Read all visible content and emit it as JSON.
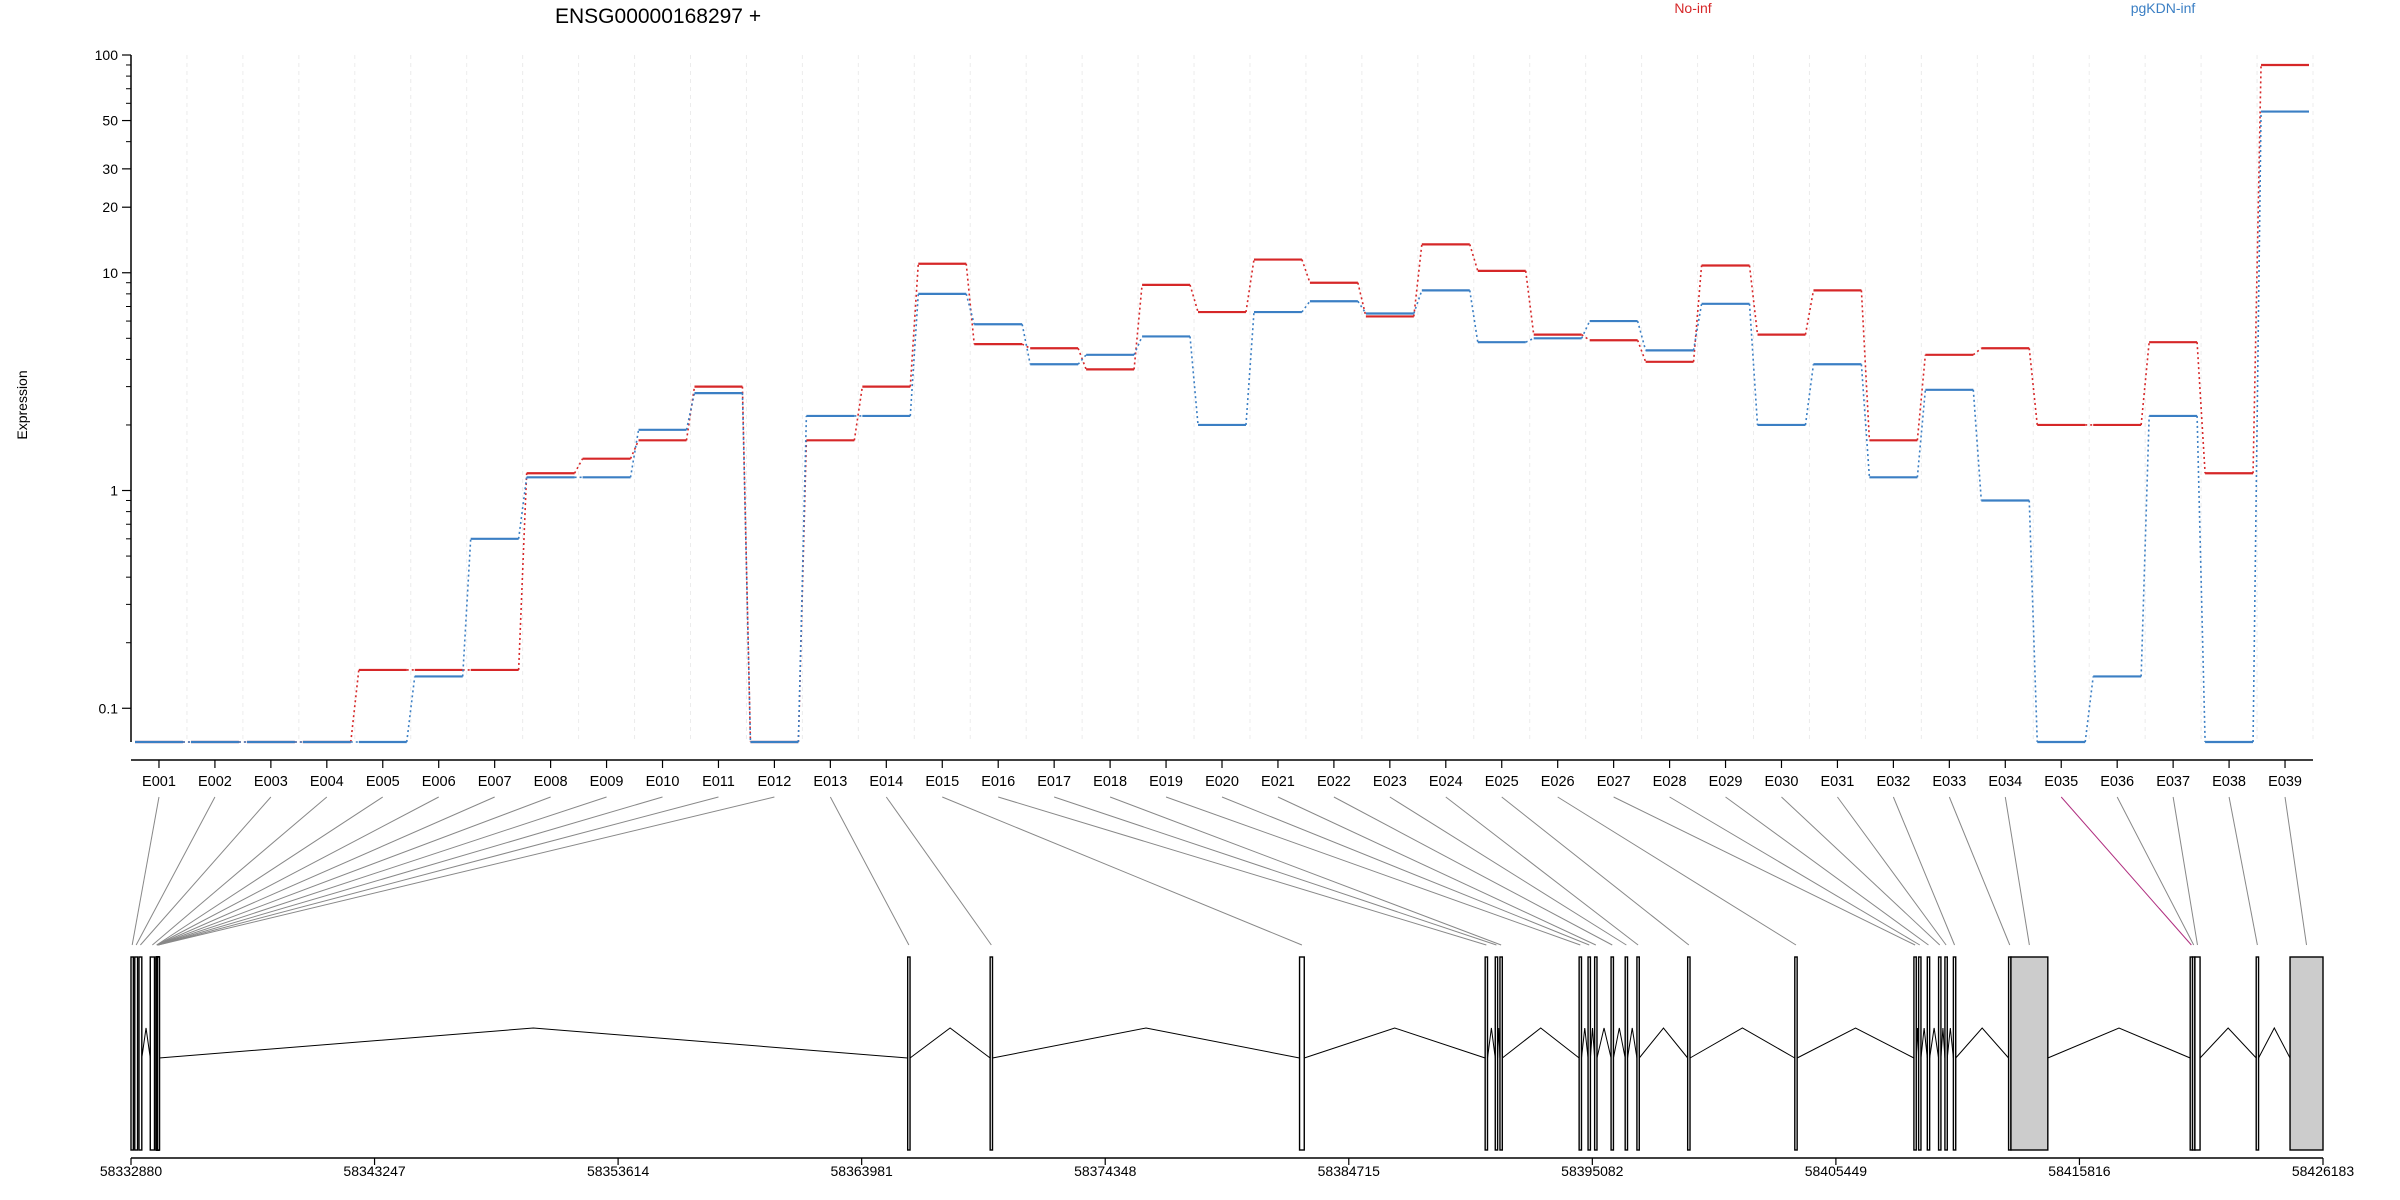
{
  "chart_data": {
    "type": "line",
    "title": "ENSG00000168297 +",
    "ylabel": "Expression",
    "xlabel": "",
    "yscale": "log",
    "ylim": [
      0.07,
      100
    ],
    "yticks": [
      {
        "value": 0.1,
        "label": "0.1"
      },
      {
        "value": 1,
        "label": "1"
      },
      {
        "value": 10,
        "label": "10"
      },
      {
        "value": 20,
        "label": "20"
      },
      {
        "value": 30,
        "label": "30"
      },
      {
        "value": 50,
        "label": "50"
      },
      {
        "value": 100,
        "label": "100"
      }
    ],
    "categories": [
      "E001",
      "E002",
      "E003",
      "E004",
      "E005",
      "E006",
      "E007",
      "E008",
      "E009",
      "E010",
      "E011",
      "E012",
      "E013",
      "E014",
      "E015",
      "E016",
      "E017",
      "E018",
      "E019",
      "E020",
      "E021",
      "E022",
      "E023",
      "E024",
      "E025",
      "E026",
      "E027",
      "E028",
      "E029",
      "E030",
      "E031",
      "E032",
      "E033",
      "E034",
      "E035",
      "E036",
      "E037",
      "E038",
      "E039"
    ],
    "series": [
      {
        "name": "No-inf",
        "color": "#d62728",
        "values": [
          0.07,
          0.07,
          0.07,
          0.07,
          0.15,
          0.15,
          0.15,
          1.2,
          1.4,
          1.7,
          3.0,
          0.07,
          1.7,
          3.0,
          11.0,
          4.7,
          4.5,
          3.6,
          8.8,
          6.6,
          11.5,
          9.0,
          6.3,
          13.5,
          10.2,
          5.2,
          4.9,
          3.9,
          10.8,
          5.2,
          8.3,
          1.7,
          4.2,
          4.5,
          2.0,
          2.0,
          4.8,
          1.2,
          90.0
        ]
      },
      {
        "name": "pgKDN-inf",
        "color": "#3b7fc4",
        "values": [
          0.07,
          0.07,
          0.07,
          0.07,
          0.07,
          0.14,
          0.6,
          1.15,
          1.15,
          1.9,
          2.8,
          0.07,
          2.2,
          2.2,
          8.0,
          5.8,
          3.8,
          4.2,
          5.1,
          2.0,
          6.6,
          7.4,
          6.5,
          8.3,
          4.8,
          5.0,
          6.0,
          4.4,
          7.2,
          2.0,
          3.8,
          1.15,
          2.9,
          0.9,
          0.07,
          0.14,
          2.2,
          0.07,
          55.0
        ]
      }
    ],
    "legend": "top",
    "grid": "vertical",
    "gene_model": {
      "coordinate_ticks": [
        "58332880",
        "58343247",
        "58353614",
        "58363981",
        "58374348",
        "58384715",
        "58395082",
        "58405449",
        "58415816",
        "58426183"
      ],
      "exons": [
        {
          "id": "E001",
          "start": 58332880,
          "end": 58332980
        },
        {
          "id": "E002",
          "start": 58333040,
          "end": 58333160
        },
        {
          "id": "E003",
          "start": 58333220,
          "end": 58333340
        },
        {
          "id": "E004",
          "start": 58333700,
          "end": 58333880
        },
        {
          "id": "E005",
          "start": 58333940,
          "end": 58334000
        },
        {
          "id": "E006",
          "start": 58333950,
          "end": 58334010
        },
        {
          "id": "E007",
          "start": 58333960,
          "end": 58334020
        },
        {
          "id": "E008",
          "start": 58333970,
          "end": 58334030
        },
        {
          "id": "E009",
          "start": 58333980,
          "end": 58334040
        },
        {
          "id": "E010",
          "start": 58333990,
          "end": 58334050
        },
        {
          "id": "E011",
          "start": 58334000,
          "end": 58334060
        },
        {
          "id": "E012",
          "start": 58334010,
          "end": 58334070
        },
        {
          "id": "E013",
          "start": 58365940,
          "end": 58366040
        },
        {
          "id": "E014",
          "start": 58369450,
          "end": 58369550
        },
        {
          "id": "E015",
          "start": 58382620,
          "end": 58382820
        },
        {
          "id": "E016",
          "start": 58390520,
          "end": 58390620
        },
        {
          "id": "E017",
          "start": 58390950,
          "end": 58391050
        },
        {
          "id": "E018",
          "start": 58391150,
          "end": 58391250
        },
        {
          "id": "E019",
          "start": 58394520,
          "end": 58394620
        },
        {
          "id": "E020",
          "start": 58394900,
          "end": 58395000
        },
        {
          "id": "E021",
          "start": 58395180,
          "end": 58395280
        },
        {
          "id": "E022",
          "start": 58395880,
          "end": 58395980
        },
        {
          "id": "E023",
          "start": 58396480,
          "end": 58396580
        },
        {
          "id": "E024",
          "start": 58396980,
          "end": 58397080
        },
        {
          "id": "E025",
          "start": 58399140,
          "end": 58399240
        },
        {
          "id": "E026",
          "start": 58403700,
          "end": 58403800
        },
        {
          "id": "E027",
          "start": 58408770,
          "end": 58408870
        },
        {
          "id": "E028",
          "start": 58408970,
          "end": 58409070
        },
        {
          "id": "E029",
          "start": 58409340,
          "end": 58409440
        },
        {
          "id": "E030",
          "start": 58409820,
          "end": 58409920
        },
        {
          "id": "E031",
          "start": 58410090,
          "end": 58410190
        },
        {
          "id": "E032",
          "start": 58410450,
          "end": 58410550
        },
        {
          "id": "E033",
          "start": 58412800,
          "end": 58412900
        },
        {
          "id": "E034",
          "start": 58412900,
          "end": 58414470
        },
        {
          "id": "E035",
          "start": 58420530,
          "end": 58420630
        },
        {
          "id": "E036",
          "start": 58420630,
          "end": 58420730
        },
        {
          "id": "E037",
          "start": 58420730,
          "end": 58420950
        },
        {
          "id": "E038",
          "start": 58423340,
          "end": 58423440
        },
        {
          "id": "E039",
          "start": 58424780,
          "end": 58426183
        }
      ]
    }
  }
}
